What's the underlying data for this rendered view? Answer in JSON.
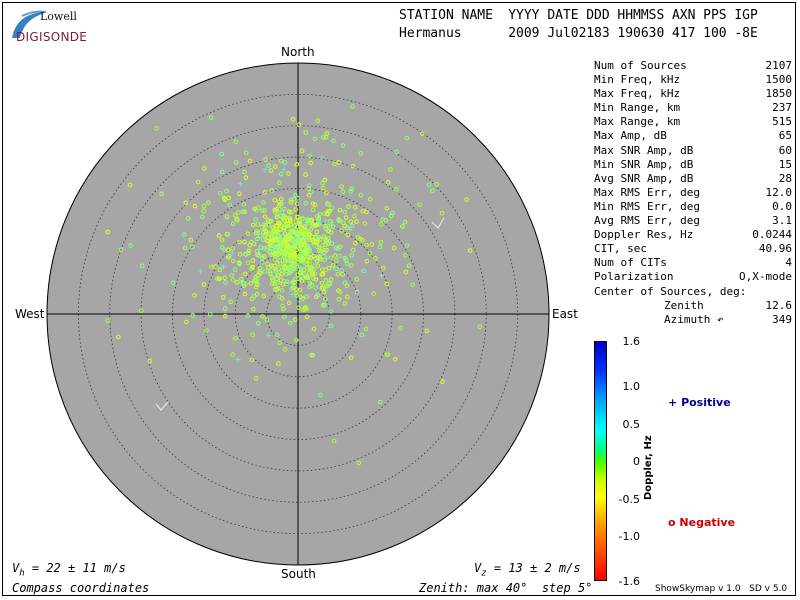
{
  "logo": {
    "line1": "Lowell",
    "line2": "DIGISONDE"
  },
  "header": {
    "labels": [
      "STATION NAME",
      "YYYY DATE",
      "DDD",
      "HHMMSS",
      "AXN",
      "PPS",
      "IGP"
    ],
    "values": [
      "Hermanus",
      "2009 Jul02",
      "183",
      "190630",
      "417",
      "100",
      "-8E"
    ]
  },
  "directions": {
    "north": "North",
    "south": "South",
    "east": "East",
    "west": "West"
  },
  "stats": [
    {
      "label": "Num of Sources",
      "value": "2107"
    },
    {
      "label": "Min Freq, kHz",
      "value": "1500"
    },
    {
      "label": "Max Freq, kHz",
      "value": "1850"
    },
    {
      "label": "Min Range, km",
      "value": "237"
    },
    {
      "label": "Max Range, km",
      "value": "515"
    },
    {
      "label": "Max Amp, dB",
      "value": "65"
    },
    {
      "label": "Max SNR Amp, dB",
      "value": "60"
    },
    {
      "label": "Min SNR Amp, dB",
      "value": "15"
    },
    {
      "label": "Avg SNR Amp, dB",
      "value": "28"
    },
    {
      "label": "Max RMS Err, deg",
      "value": "12.0"
    },
    {
      "label": "Min RMS Err, deg",
      "value": "0.0"
    },
    {
      "label": "Avg RMS Err, deg",
      "value": "3.1"
    },
    {
      "label": "Doppler Res, Hz",
      "value": "0.0244"
    },
    {
      "label": "CIT, sec",
      "value": "40.96"
    },
    {
      "label": "Num of CITs",
      "value": "4"
    },
    {
      "label": "Polarization",
      "value": "O,X-mode"
    },
    {
      "label": "Center of Sources, deg:",
      "value": ""
    }
  ],
  "center": {
    "zenith_label": "Zenith",
    "zenith_value": "12.6",
    "azimuth_label": "Azimuth ↶",
    "azimuth_value": "349"
  },
  "colorbar": {
    "ticks": [
      "1.6",
      "1.0",
      "0.5",
      "0",
      "-0.5",
      "-1.0",
      "-1.6"
    ],
    "tick_values": [
      1.6,
      1.0,
      0.5,
      0,
      -0.5,
      -1.0,
      -1.6
    ],
    "label": "Doppler, Hz"
  },
  "legend": {
    "positive": "Positive",
    "negative": "Negative",
    "positive_color": "#000099",
    "negative_color": "#cc0000"
  },
  "footer": {
    "vh_prefix": "V",
    "vh_sub": "h",
    "vh_rest": " = 22 ± 11 m/s",
    "vz_prefix": "V",
    "vz_sub": "z",
    "vz_rest": " = 13 ± 2 m/s",
    "coords": "Compass coordinates",
    "zenith_info": "Zenith: max 40°  step 5°",
    "software": "ShowSkymap v 1.0   SD v 5.0"
  },
  "chart_data": {
    "type": "scatter",
    "coordinate_system": "polar (zenith angle, azimuth)",
    "zenith_max_deg": 40,
    "zenith_step_deg": 5,
    "background_color": "#a6a6a6",
    "point_color_primary": "#ccff33",
    "num_sources": 2107,
    "center_zenith_deg": 12.6,
    "center_azimuth_deg": 349,
    "sample_points": [
      {
        "zen": 5,
        "az": 350
      },
      {
        "zen": 8,
        "az": 10
      },
      {
        "zen": 12,
        "az": 355
      },
      {
        "zen": 12.6,
        "az": 349
      },
      {
        "zen": 14,
        "az": 20
      },
      {
        "zen": 15,
        "az": 340
      },
      {
        "zen": 18,
        "az": 30
      },
      {
        "zen": 20,
        "az": 5
      },
      {
        "zen": 10,
        "az": 300
      },
      {
        "zen": 9,
        "az": 60
      },
      {
        "zen": 22,
        "az": 40
      },
      {
        "zen": 25,
        "az": 15
      },
      {
        "zen": 6,
        "az": 200
      },
      {
        "zen": 7,
        "az": 160
      },
      {
        "zen": 28,
        "az": 55
      },
      {
        "zen": 30,
        "az": 290
      }
    ]
  }
}
